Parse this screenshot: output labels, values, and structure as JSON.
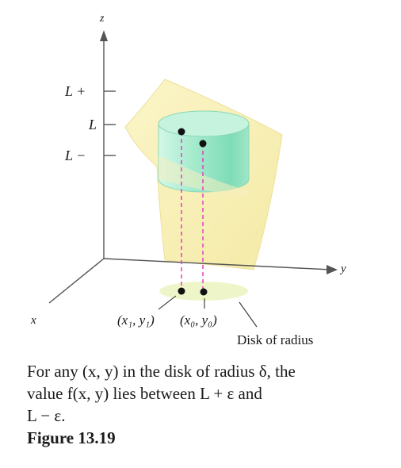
{
  "axes": {
    "z_label": "z",
    "y_label": "y",
    "x_label": "x"
  },
  "z_ticks": {
    "upper": "L +",
    "middle": "L",
    "lower": "L −"
  },
  "points": {
    "p1_label": "(x₁, y₁)",
    "p0_label": "(x₀, y₀)"
  },
  "disk_label": "Disk of radius",
  "caption": {
    "line1": "For any (x, y) in the disk of radius δ, the",
    "line2": "value f(x, y) lies between L + ε and",
    "line3": "L − ε."
  },
  "figure_title": "Figure 13.19",
  "colors": {
    "surface": "#f8f0b4",
    "surface_edge": "#e8dc8c",
    "cylinder": "#9fe8c8",
    "cylinder_top": "#c8f5e0",
    "disk": "#eef7cc",
    "dashes": "#e040c0",
    "ink": "#1a1a1a"
  }
}
